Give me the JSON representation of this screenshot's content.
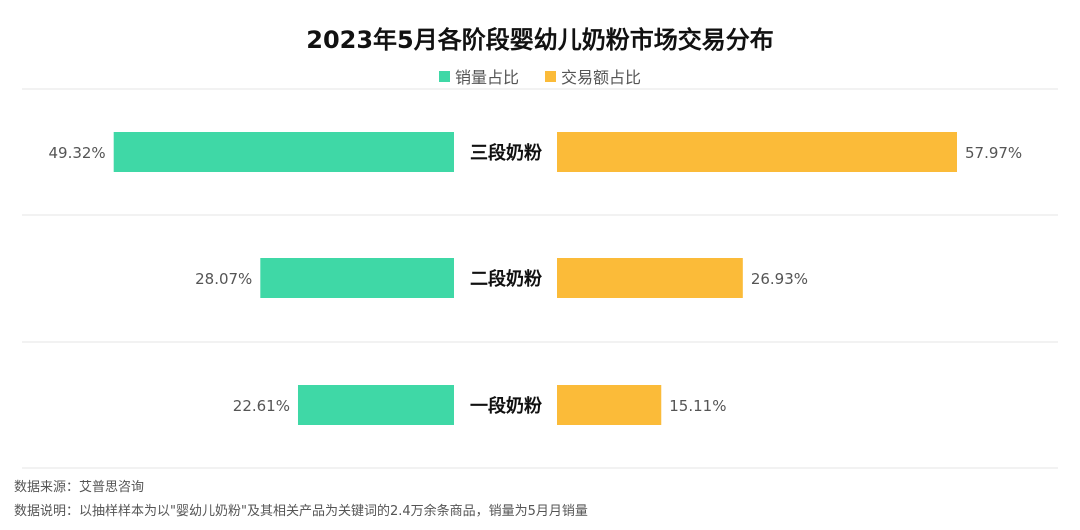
{
  "chart_data": {
    "type": "bar",
    "title": "2023年5月各阶段婴幼儿奶粉市场交易分布",
    "categories": [
      "三段奶粉",
      "二段奶粉",
      "一段奶粉"
    ],
    "series": [
      {
        "name": "销量占比",
        "values": [
          49.32,
          28.07,
          22.61
        ],
        "labels": [
          "49.32%",
          "28.07%",
          "22.61%"
        ],
        "color": "#3fd8a6"
      },
      {
        "name": "交易额占比",
        "values": [
          57.97,
          26.93,
          15.11
        ],
        "labels": [
          "57.97%",
          "26.93%",
          "15.11%"
        ],
        "color": "#fbbb39"
      }
    ],
    "xlim": [
      0,
      60
    ],
    "legend_position": "top-center",
    "grid": true
  },
  "footer": {
    "source": "数据来源：艾普思咨询",
    "note": "数据说明：以抽样样本为以\"婴幼儿奶粉\"及其相关产品为关键词的2.4万余条商品，销量为5月月销量"
  }
}
